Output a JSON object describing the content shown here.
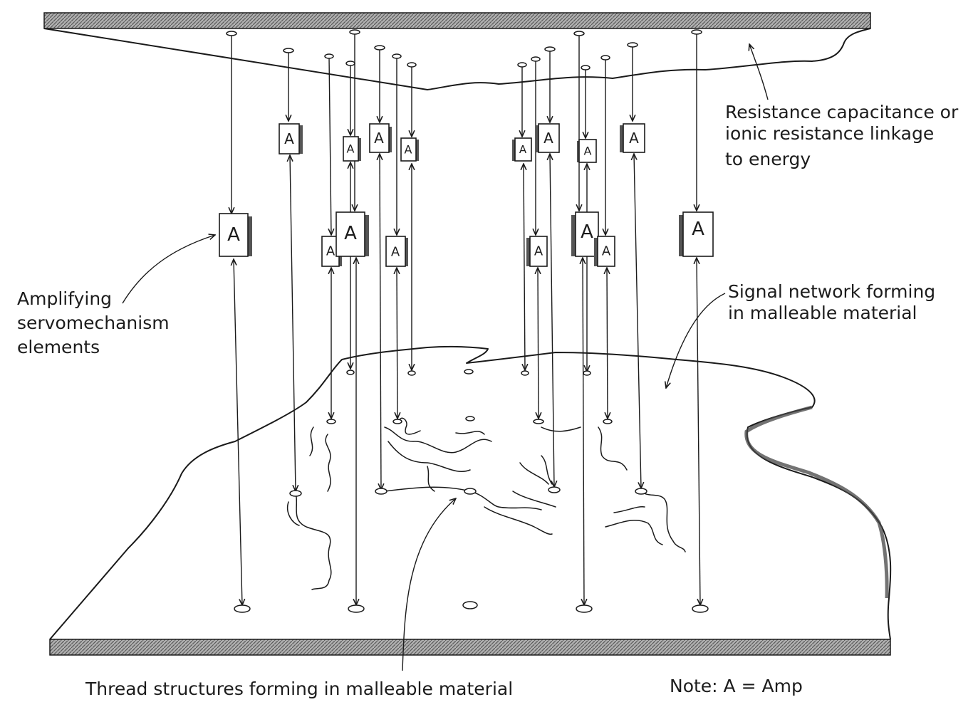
{
  "labels": {
    "energy_line1": "Resistance capacitance or",
    "energy_line2": "ionic resistance linkage",
    "energy_line3": "to energy",
    "amp_line1": "Amplifying",
    "amp_line2": "servomechanism",
    "amp_line3": "elements",
    "signal_line1": "Signal network forming",
    "signal_line2": "in malleable material",
    "thread": "Thread structures forming in malleable material",
    "note": "Note:  A = Amp"
  },
  "amplifier_symbol": "A",
  "colors": {
    "ink": "#1a1a1a",
    "plate_hatch": "#7a7a7a",
    "background": "#ffffff"
  }
}
